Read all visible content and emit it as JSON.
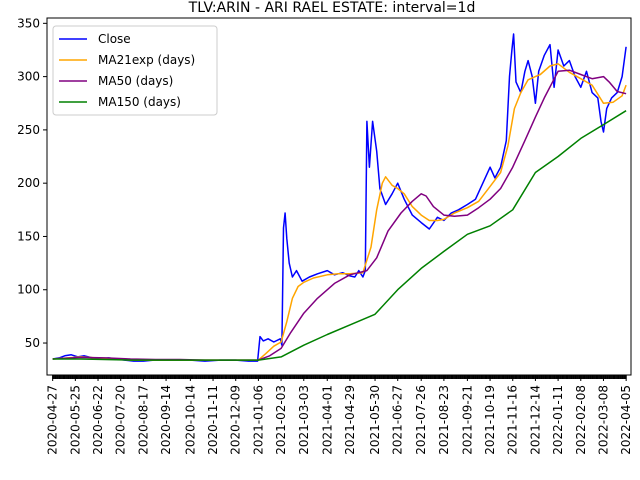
{
  "chart_data": {
    "type": "line",
    "title": "TLV:ARIN - ARI RAEL ESTATE: interval=1d",
    "xlabel": "",
    "ylabel": "",
    "x_range": [
      "2020-04-20",
      "2022-04-11"
    ],
    "ylim": [
      20,
      355
    ],
    "grid": false,
    "legend_position": "top-left",
    "y_ticks": [
      50,
      100,
      150,
      200,
      250,
      300,
      350
    ],
    "x_ticks": [
      "2020-04-27",
      "2020-05-25",
      "2020-06-22",
      "2020-07-20",
      "2020-08-17",
      "2020-09-14",
      "2020-10-14",
      "2020-11-11",
      "2020-12-09",
      "2021-01-06",
      "2021-02-03",
      "2021-03-03",
      "2021-04-01",
      "2021-04-29",
      "2021-05-30",
      "2021-06-27",
      "2021-07-26",
      "2021-08-23",
      "2021-09-21",
      "2021-10-19",
      "2021-11-16",
      "2021-12-14",
      "2022-01-11",
      "2022-02-08",
      "2022-03-08",
      "2022-04-05"
    ],
    "series": [
      {
        "name": "Close",
        "color": "#0000ff",
        "points": [
          [
            "2020-04-27",
            35
          ],
          [
            "2020-05-05",
            36
          ],
          [
            "2020-05-12",
            38
          ],
          [
            "2020-05-20",
            39
          ],
          [
            "2020-05-28",
            37
          ],
          [
            "2020-06-05",
            38
          ],
          [
            "2020-06-15",
            36
          ],
          [
            "2020-06-25",
            35
          ],
          [
            "2020-07-05",
            36
          ],
          [
            "2020-07-15",
            35
          ],
          [
            "2020-07-25",
            34
          ],
          [
            "2020-08-05",
            33
          ],
          [
            "2020-08-17",
            33
          ],
          [
            "2020-08-30",
            34
          ],
          [
            "2020-09-14",
            34
          ],
          [
            "2020-10-01",
            34
          ],
          [
            "2020-10-14",
            34
          ],
          [
            "2020-11-01",
            33
          ],
          [
            "2020-11-20",
            34
          ],
          [
            "2020-12-09",
            34
          ],
          [
            "2020-12-25",
            33
          ],
          [
            "2021-01-05",
            33
          ],
          [
            "2021-01-08",
            56
          ],
          [
            "2021-01-12",
            52
          ],
          [
            "2021-01-18",
            54
          ],
          [
            "2021-01-25",
            51
          ],
          [
            "2021-02-02",
            54
          ],
          [
            "2021-02-04",
            48
          ],
          [
            "2021-02-06",
            158
          ],
          [
            "2021-02-08",
            172
          ],
          [
            "2021-02-10",
            148
          ],
          [
            "2021-02-13",
            125
          ],
          [
            "2021-02-17",
            112
          ],
          [
            "2021-02-22",
            118
          ],
          [
            "2021-03-01",
            108
          ],
          [
            "2021-03-10",
            112
          ],
          [
            "2021-03-20",
            115
          ],
          [
            "2021-04-01",
            118
          ],
          [
            "2021-04-10",
            114
          ],
          [
            "2021-04-20",
            116
          ],
          [
            "2021-04-29",
            113
          ],
          [
            "2021-05-05",
            112
          ],
          [
            "2021-05-10",
            118
          ],
          [
            "2021-05-15",
            112
          ],
          [
            "2021-05-18",
            118
          ],
          [
            "2021-05-20",
            258
          ],
          [
            "2021-05-23",
            215
          ],
          [
            "2021-05-27",
            258
          ],
          [
            "2021-06-01",
            230
          ],
          [
            "2021-06-05",
            195
          ],
          [
            "2021-06-12",
            180
          ],
          [
            "2021-06-20",
            190
          ],
          [
            "2021-06-27",
            200
          ],
          [
            "2021-07-05",
            185
          ],
          [
            "2021-07-15",
            170
          ],
          [
            "2021-07-26",
            163
          ],
          [
            "2021-08-05",
            157
          ],
          [
            "2021-08-15",
            168
          ],
          [
            "2021-08-23",
            165
          ],
          [
            "2021-09-01",
            172
          ],
          [
            "2021-09-10",
            175
          ],
          [
            "2021-09-21",
            180
          ],
          [
            "2021-10-01",
            185
          ],
          [
            "2021-10-10",
            200
          ],
          [
            "2021-10-19",
            215
          ],
          [
            "2021-10-25",
            205
          ],
          [
            "2021-11-01",
            215
          ],
          [
            "2021-11-08",
            240
          ],
          [
            "2021-11-12",
            300
          ],
          [
            "2021-11-15",
            325
          ],
          [
            "2021-11-17",
            340
          ],
          [
            "2021-11-20",
            295
          ],
          [
            "2021-11-26",
            285
          ],
          [
            "2021-12-01",
            305
          ],
          [
            "2021-12-05",
            315
          ],
          [
            "2021-12-10",
            300
          ],
          [
            "2021-12-14",
            275
          ],
          [
            "2021-12-18",
            305
          ],
          [
            "2021-12-25",
            320
          ],
          [
            "2022-01-01",
            330
          ],
          [
            "2022-01-06",
            290
          ],
          [
            "2022-01-11",
            325
          ],
          [
            "2022-01-18",
            310
          ],
          [
            "2022-01-25",
            315
          ],
          [
            "2022-02-01",
            300
          ],
          [
            "2022-02-08",
            290
          ],
          [
            "2022-02-15",
            305
          ],
          [
            "2022-02-22",
            285
          ],
          [
            "2022-03-01",
            280
          ],
          [
            "2022-03-05",
            258
          ],
          [
            "2022-03-08",
            248
          ],
          [
            "2022-03-12",
            270
          ],
          [
            "2022-03-18",
            280
          ],
          [
            "2022-03-25",
            285
          ],
          [
            "2022-03-31",
            300
          ],
          [
            "2022-04-05",
            328
          ]
        ]
      },
      {
        "name": "MA21exp (days)",
        "color": "#ffa500",
        "points": [
          [
            "2020-04-27",
            35
          ],
          [
            "2020-06-01",
            37
          ],
          [
            "2020-07-01",
            35.5
          ],
          [
            "2020-08-01",
            34
          ],
          [
            "2020-09-01",
            34
          ],
          [
            "2020-10-01",
            34
          ],
          [
            "2020-11-01",
            34
          ],
          [
            "2020-12-01",
            34
          ],
          [
            "2021-01-06",
            34
          ],
          [
            "2021-01-15",
            40
          ],
          [
            "2021-01-25",
            47
          ],
          [
            "2021-02-03",
            51
          ],
          [
            "2021-02-10",
            70
          ],
          [
            "2021-02-17",
            92
          ],
          [
            "2021-02-24",
            103
          ],
          [
            "2021-03-03",
            107
          ],
          [
            "2021-03-15",
            111
          ],
          [
            "2021-04-01",
            114
          ],
          [
            "2021-04-15",
            115
          ],
          [
            "2021-04-29",
            115
          ],
          [
            "2021-05-15",
            116
          ],
          [
            "2021-05-25",
            140
          ],
          [
            "2021-06-01",
            175
          ],
          [
            "2021-06-08",
            200
          ],
          [
            "2021-06-12",
            206
          ],
          [
            "2021-06-20",
            198
          ],
          [
            "2021-06-27",
            195
          ],
          [
            "2021-07-05",
            190
          ],
          [
            "2021-07-15",
            178
          ],
          [
            "2021-07-26",
            170
          ],
          [
            "2021-08-05",
            165
          ],
          [
            "2021-08-15",
            165
          ],
          [
            "2021-08-23",
            166
          ],
          [
            "2021-09-05",
            172
          ],
          [
            "2021-09-21",
            177
          ],
          [
            "2021-10-05",
            183
          ],
          [
            "2021-10-19",
            197
          ],
          [
            "2021-11-01",
            210
          ],
          [
            "2021-11-10",
            235
          ],
          [
            "2021-11-18",
            270
          ],
          [
            "2021-11-26",
            285
          ],
          [
            "2021-12-05",
            297
          ],
          [
            "2021-12-14",
            300
          ],
          [
            "2021-12-20",
            302
          ],
          [
            "2022-01-01",
            310
          ],
          [
            "2022-01-11",
            312
          ],
          [
            "2022-01-25",
            304
          ],
          [
            "2022-02-08",
            298
          ],
          [
            "2022-02-22",
            292
          ],
          [
            "2022-03-08",
            275
          ],
          [
            "2022-03-20",
            276
          ],
          [
            "2022-03-31",
            282
          ],
          [
            "2022-04-05",
            292
          ]
        ]
      },
      {
        "name": "MA50 (days)",
        "color": "#800080",
        "points": [
          [
            "2020-04-27",
            35
          ],
          [
            "2020-06-01",
            36.5
          ],
          [
            "2020-07-01",
            36
          ],
          [
            "2020-08-01",
            35
          ],
          [
            "2020-09-01",
            34.5
          ],
          [
            "2020-10-01",
            34.5
          ],
          [
            "2020-11-01",
            34
          ],
          [
            "2020-12-01",
            34
          ],
          [
            "2021-01-06",
            34
          ],
          [
            "2021-01-20",
            38
          ],
          [
            "2021-02-03",
            45
          ],
          [
            "2021-02-15",
            60
          ],
          [
            "2021-03-03",
            78
          ],
          [
            "2021-03-20",
            92
          ],
          [
            "2021-04-10",
            106
          ],
          [
            "2021-04-29",
            114
          ],
          [
            "2021-05-20",
            118
          ],
          [
            "2021-06-01",
            130
          ],
          [
            "2021-06-15",
            155
          ],
          [
            "2021-07-01",
            172
          ],
          [
            "2021-07-15",
            183
          ],
          [
            "2021-07-26",
            190
          ],
          [
            "2021-08-01",
            188
          ],
          [
            "2021-08-10",
            178
          ],
          [
            "2021-08-23",
            170
          ],
          [
            "2021-09-05",
            169
          ],
          [
            "2021-09-21",
            170
          ],
          [
            "2021-10-05",
            177
          ],
          [
            "2021-10-19",
            185
          ],
          [
            "2021-11-01",
            195
          ],
          [
            "2021-11-16",
            215
          ],
          [
            "2021-12-01",
            240
          ],
          [
            "2021-12-14",
            262
          ],
          [
            "2021-12-25",
            280
          ],
          [
            "2022-01-11",
            305
          ],
          [
            "2022-01-25",
            306
          ],
          [
            "2022-02-08",
            302
          ],
          [
            "2022-02-22",
            298
          ],
          [
            "2022-03-08",
            300
          ],
          [
            "2022-03-15",
            295
          ],
          [
            "2022-03-25",
            286
          ],
          [
            "2022-04-05",
            284
          ]
        ]
      },
      {
        "name": "MA150 (days)",
        "color": "#008000",
        "points": [
          [
            "2020-04-27",
            35
          ],
          [
            "2020-06-01",
            35
          ],
          [
            "2020-08-01",
            34
          ],
          [
            "2020-10-01",
            34
          ],
          [
            "2020-12-01",
            34
          ],
          [
            "2021-01-06",
            34
          ],
          [
            "2021-02-03",
            37
          ],
          [
            "2021-03-03",
            48
          ],
          [
            "2021-04-01",
            58
          ],
          [
            "2021-04-29",
            67
          ],
          [
            "2021-05-30",
            77
          ],
          [
            "2021-06-27",
            100
          ],
          [
            "2021-07-26",
            120
          ],
          [
            "2021-08-23",
            136
          ],
          [
            "2021-09-21",
            152
          ],
          [
            "2021-10-19",
            160
          ],
          [
            "2021-11-16",
            175
          ],
          [
            "2021-12-14",
            210
          ],
          [
            "2022-01-11",
            225
          ],
          [
            "2022-02-08",
            242
          ],
          [
            "2022-03-08",
            255
          ],
          [
            "2022-04-05",
            268
          ]
        ]
      }
    ]
  }
}
